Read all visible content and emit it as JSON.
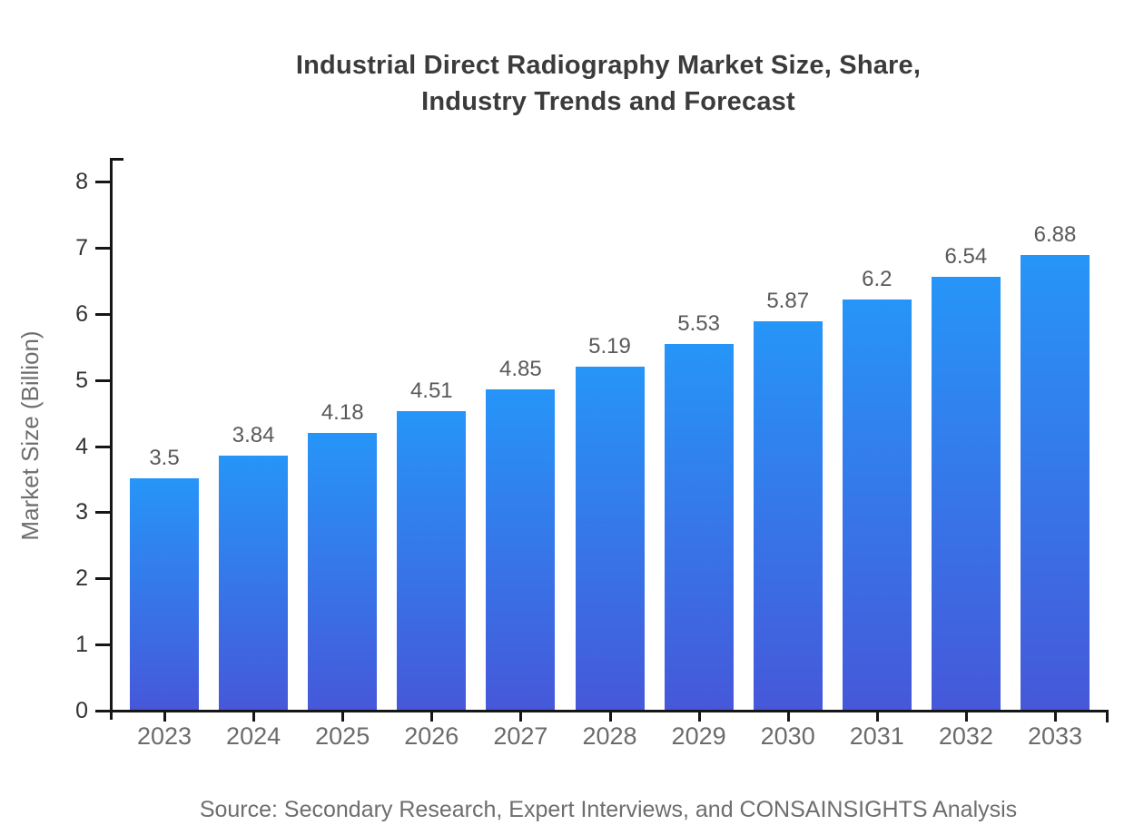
{
  "title": {
    "lines": [
      "Industrial Direct Radiography Market Size, Share,",
      "Industry Trends and Forecast"
    ]
  },
  "source_note": "Source: Secondary Research, Expert Interviews, and CONSAINSIGHTS Analysis",
  "chart_data": {
    "type": "bar",
    "title": "Industrial Direct Radiography Market Size, Share, Industry Trends and Forecast",
    "categories": [
      "2023",
      "2024",
      "2025",
      "2026",
      "2027",
      "2028",
      "2029",
      "2030",
      "2031",
      "2032",
      "2033"
    ],
    "values": [
      3.5,
      3.84,
      4.18,
      4.51,
      4.85,
      5.19,
      5.53,
      5.87,
      6.2,
      6.54,
      6.88
    ],
    "xlabel": "",
    "ylabel": "Market Size (Billion)",
    "ylim": [
      0,
      8
    ],
    "yticks": [
      0,
      1,
      2,
      3,
      4,
      5,
      6,
      7,
      8
    ],
    "grid": false,
    "legend": false,
    "data_labels_shown": true,
    "colors": {
      "bar_gradient_top": "#2695F8",
      "bar_gradient_bottom": "#4658D9",
      "axis": "#161616",
      "y_tick_label": "#333333",
      "x_tick_label": "#6b6b6b",
      "value_label": "#58595b",
      "title": "#3b3b3b",
      "source": "#6e6e6e"
    }
  }
}
